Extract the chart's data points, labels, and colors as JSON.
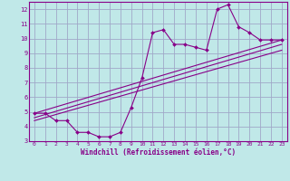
{
  "title": "",
  "xlabel": "Windchill (Refroidissement éolien,°C)",
  "bg_color": "#c0e8e8",
  "grid_color": "#a0a8c8",
  "line_color": "#880088",
  "xlim": [
    -0.5,
    23.5
  ],
  "ylim": [
    3,
    12.5
  ],
  "xticks": [
    0,
    1,
    2,
    3,
    4,
    5,
    6,
    7,
    8,
    9,
    10,
    11,
    12,
    13,
    14,
    15,
    16,
    17,
    18,
    19,
    20,
    21,
    22,
    23
  ],
  "yticks": [
    3,
    4,
    5,
    6,
    7,
    8,
    9,
    10,
    11,
    12
  ],
  "data_x": [
    0,
    1,
    2,
    3,
    4,
    5,
    6,
    7,
    8,
    9,
    10,
    11,
    12,
    13,
    14,
    15,
    16,
    17,
    18,
    19,
    20,
    21,
    22,
    23
  ],
  "data_y": [
    4.9,
    4.9,
    4.4,
    4.4,
    3.6,
    3.6,
    3.3,
    3.3,
    3.6,
    5.3,
    7.3,
    10.4,
    10.6,
    9.6,
    9.6,
    9.4,
    9.2,
    12.0,
    12.3,
    10.8,
    10.4,
    9.9,
    9.9,
    9.9
  ],
  "line1_x": [
    0,
    23
  ],
  "line1_y": [
    4.9,
    9.9
  ],
  "line2_x": [
    0,
    23
  ],
  "line2_y": [
    4.6,
    9.6
  ],
  "line3_x": [
    0,
    23
  ],
  "line3_y": [
    4.4,
    9.2
  ]
}
